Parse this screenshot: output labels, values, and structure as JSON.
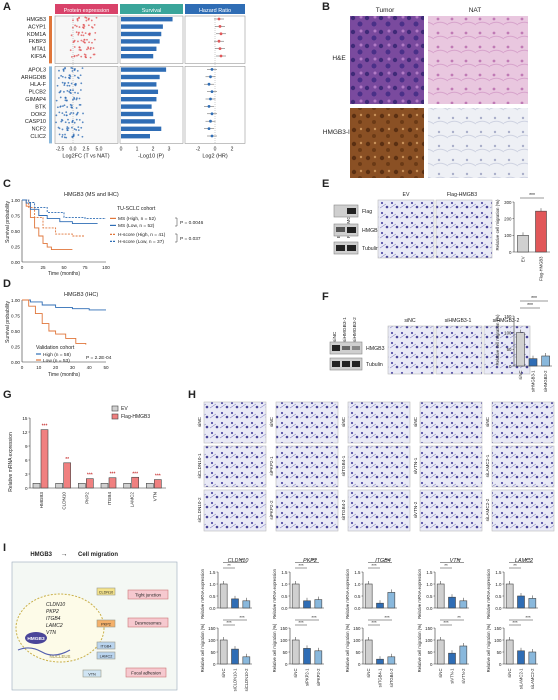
{
  "panels": {
    "A": "A",
    "B": "B",
    "C": "C",
    "D": "D",
    "E": "E",
    "F": "F",
    "G": "G",
    "H": "H",
    "I": "I"
  },
  "panelA": {
    "headers": [
      "Protein expression",
      "Survival",
      "Hazard Ratio"
    ],
    "genes_top": [
      "HMGB3",
      "ACYP1",
      "KDM1A",
      "FKBP3",
      "MTA1",
      "KIF5A"
    ],
    "genes_bottom": [
      "APOL3",
      "ARHGDIB",
      "HLA-F",
      "PLCB2",
      "GIMAP4",
      "BTK",
      "DOK2",
      "CASP10",
      "NCF2",
      "CLIC2"
    ],
    "x_ticks_1": [
      "-2.5",
      "0.0",
      "2.5",
      "5.0"
    ],
    "x_ticks_2": [
      "0",
      "1",
      "2",
      "3"
    ],
    "x_ticks_3": [
      "-2",
      "0",
      "2"
    ],
    "xlabel_1": "Log2FC (T vs NAT)",
    "xlabel_2": "-Log10 (P)",
    "xlabel_3": "Log2 (HR)",
    "survival_top": [
      3.2,
      2.6,
      2.5,
      2.4,
      2.2,
      2.0
    ],
    "survival_bottom": [
      2.8,
      2.4,
      2.2,
      2.3,
      2.2,
      1.9,
      2.0,
      2.1,
      2.5,
      1.8
    ]
  },
  "panelB": {
    "col_tumor": "Tumor",
    "col_nat": "NAT",
    "row_he": "H&E",
    "row_ihc": "HMGB3-IHC"
  },
  "panelC": {
    "title": "HMGB3 (MS and IHC)",
    "cohort": "TU-SCLC cohort",
    "ylabel": "Survival probability",
    "xlabel": "Time (months)",
    "x_ticks": [
      "0",
      "25",
      "50",
      "75",
      "100"
    ],
    "y_ticks": [
      "0.00",
      "0.25",
      "0.50",
      "0.75",
      "1.00"
    ],
    "legend": [
      "MS (High, n = 52)",
      "MS (Low, n = 52)",
      "H-score (High, n = 41)",
      "H-score (Low, n = 37)"
    ],
    "p1": "P = 0.0046",
    "p2": "P = 0.037"
  },
  "panelD": {
    "title": "HMGB3 (IHC)",
    "cohort": "Validation cohort",
    "ylabel": "Survival probability",
    "xlabel": "Time (months)",
    "x_ticks": [
      "0",
      "10",
      "20",
      "30",
      "40",
      "50"
    ],
    "y_ticks": [
      "0.00",
      "0.25",
      "0.50",
      "0.75",
      "1.00"
    ],
    "legend": [
      "High (n = 58)",
      "Low (n = 53)"
    ],
    "p": "P = 2.2E-04"
  },
  "panelE": {
    "lanes": [
      "EV",
      "Flag-HMGB3"
    ],
    "blots": [
      "Flag",
      "HMGB3",
      "Tubulin"
    ],
    "img_labels": [
      "EV",
      "Flag-HMGB3"
    ],
    "ylabel": "Relative cell migration (%)",
    "y_ticks": [
      "0",
      "100",
      "200",
      "300"
    ],
    "categories": [
      "EV",
      "Flag-HMGB3"
    ],
    "values": [
      100,
      245
    ],
    "sig": "***"
  },
  "panelF": {
    "lanes": [
      "siNC",
      "siHMGB3-1",
      "siHMGB3-2"
    ],
    "blots": [
      "HMGB3",
      "Tubulin"
    ],
    "img_labels": [
      "siNC",
      "siHMGB3-1",
      "siHMGB3-2"
    ],
    "ylabel": "Relative cell migration (%)",
    "y_ticks": [
      "0",
      "50",
      "100",
      "150"
    ],
    "categories": [
      "siNC",
      "siHMGB3-1",
      "siHMGB3-2"
    ],
    "values": [
      100,
      22,
      30
    ],
    "sig": [
      "***",
      "***"
    ]
  },
  "panelG": {
    "ylabel": "Relative mRNA expression",
    "y_ticks": [
      "0",
      "3",
      "6",
      "9",
      "12",
      "15"
    ],
    "legend": [
      "EV",
      "Flag-HMGB3"
    ],
    "categories": [
      "HMGB3",
      "CLDN10",
      "PKP2",
      "ITGB4",
      "LAMC2",
      "VTN"
    ],
    "ev": [
      1,
      1,
      1,
      1,
      1,
      1
    ],
    "flag": [
      12.5,
      5.4,
      2.0,
      2.2,
      2.3,
      1.8
    ],
    "sig": [
      "***",
      "**",
      "***",
      "***",
      "***",
      "***"
    ]
  },
  "panelH": {
    "columns": [
      [
        "siNC",
        "siCLDN10-1",
        "siCLDN10-2"
      ],
      [
        "siNC",
        "siPKP2-1",
        "siPKP2-2"
      ],
      [
        "siNC",
        "siITGB4-1",
        "siITGB4-2"
      ],
      [
        "siNC",
        "siVTN-1",
        "siVTN-2"
      ],
      [
        "siNC",
        "siLAMC2-1",
        "siLAMC2-2"
      ]
    ]
  },
  "panelI": {
    "title_left": "HMGB3",
    "arrow": "→",
    "title_right": "Cell migration",
    "nodes": [
      "Tight junction",
      "Desmosomes",
      "Focal adhesion"
    ],
    "small": [
      "CLDN10",
      "PKP2",
      "ITGB4",
      "LAMC2",
      "VTN"
    ],
    "genes": [
      "CLDN10",
      "PKP2",
      "ITGB4",
      "LAMC2",
      "VTN"
    ],
    "center": "HMGB3",
    "nucleus": "NUCLEUS",
    "charts": [
      {
        "gene": "CLDN10",
        "mrna": [
          1,
          0.38,
          0.3
        ],
        "mig": [
          100,
          62,
          30
        ],
        "sig_m": [
          "**",
          "**"
        ],
        "sig_c": [
          "***",
          "***"
        ],
        "cats": [
          "siNC",
          "siCLDN10-1",
          "siCLDN10-2"
        ]
      },
      {
        "gene": "PKP2",
        "mrna": [
          1,
          0.3,
          0.35
        ],
        "mig": [
          100,
          65,
          55
        ],
        "sig_m": [
          "***",
          "***"
        ],
        "sig_c": [
          "***",
          "***"
        ],
        "cats": [
          "siNC",
          "siPKP2-1",
          "siPKP2-2"
        ]
      },
      {
        "gene": "ITGB4",
        "mrna": [
          1,
          0.2,
          0.65
        ],
        "mig": [
          100,
          20,
          30
        ],
        "sig_m": [
          "***",
          "***"
        ],
        "sig_c": [
          "***",
          "***"
        ],
        "cats": [
          "siNC",
          "siITGB4-1",
          "siITGB4-2"
        ]
      },
      {
        "gene": "VTN",
        "mrna": [
          1,
          0.45,
          0.3
        ],
        "mig": [
          100,
          45,
          75
        ],
        "sig_m": [
          "**",
          "**"
        ],
        "sig_c": [
          "***",
          "**"
        ],
        "cats": [
          "siNC",
          "siVTN-1",
          "siVTN-2"
        ]
      },
      {
        "gene": "LAMC2",
        "mrna": [
          1,
          0.5,
          0.4
        ],
        "mig": [
          100,
          55,
          50
        ],
        "sig_m": [
          "**",
          "***"
        ],
        "sig_c": [
          "***",
          "***"
        ],
        "cats": [
          "siNC",
          "siLAMC2-1",
          "siLAMC2-2"
        ]
      }
    ],
    "ylabel_m": "Relative mRNA expression",
    "ylabel_c": "Relative cell migration (%)",
    "ticks_m": [
      "0.0",
      "0.5",
      "1.0",
      "1.5"
    ],
    "ticks_c": [
      "0",
      "50",
      "100",
      "150"
    ]
  },
  "colors": {
    "red": "#e15759",
    "blue": "#2f6db5",
    "lightblue": "#89b8dc",
    "grey": "#d0d0d0",
    "teal": "#3aa59a",
    "pink": "#d9426a",
    "orange": "#e0763a"
  }
}
